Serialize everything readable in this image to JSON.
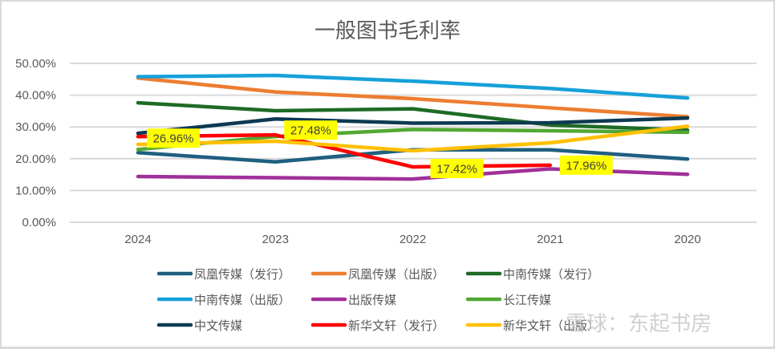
{
  "chart_data": {
    "type": "line",
    "title": "一般图书毛利率",
    "xlabel": "",
    "ylabel": "",
    "categories": [
      "2024",
      "2023",
      "2022",
      "2021",
      "2020"
    ],
    "ylim": [
      0,
      0.5
    ],
    "yticks": [
      "0.00%",
      "10.00%",
      "20.00%",
      "30.00%",
      "40.00%",
      "50.00%"
    ],
    "ytick_values": [
      0,
      0.1,
      0.2,
      0.3,
      0.4,
      0.5
    ],
    "grid": true,
    "legend_position": "bottom",
    "series": [
      {
        "name": "凤凰传媒（发行）",
        "color": "#1f5f80",
        "values": [
          0.219,
          0.19,
          0.228,
          0.228,
          0.199
        ]
      },
      {
        "name": "凤凰传媒（出版）",
        "color": "#ed7d31",
        "values": [
          0.454,
          0.41,
          0.389,
          0.36,
          0.332
        ]
      },
      {
        "name": "中南传媒（发行）",
        "color": "#1e6b25",
        "values": [
          0.376,
          0.351,
          0.357,
          0.306,
          0.29
        ]
      },
      {
        "name": "中南传媒（出版）",
        "color": "#16a0d9",
        "values": [
          0.458,
          0.462,
          0.444,
          0.421,
          0.391
        ]
      },
      {
        "name": "出版传媒",
        "color": "#a0309a",
        "values": [
          0.144,
          0.14,
          0.136,
          0.168,
          0.151
        ]
      },
      {
        "name": "长江传媒",
        "color": "#52a832",
        "values": [
          0.229,
          0.27,
          0.292,
          0.288,
          0.283
        ]
      },
      {
        "name": "中文传媒",
        "color": "#0d3a52",
        "values": [
          0.28,
          0.325,
          0.312,
          0.313,
          0.328
        ]
      },
      {
        "name": "新华文轩（发行）",
        "color": "#ff0000",
        "values": [
          0.2696,
          0.2748,
          0.1742,
          0.1796,
          null
        ],
        "data_labels": [
          "26.96%",
          "27.48%",
          "17.42%",
          "17.96%",
          null
        ]
      },
      {
        "name": "新华文轩（出版）",
        "color": "#ffc000",
        "values": [
          0.245,
          0.255,
          0.225,
          0.25,
          0.302
        ]
      }
    ],
    "data_label_style": {
      "background": "#ffff00"
    }
  },
  "watermark": "雪球：东起书房"
}
